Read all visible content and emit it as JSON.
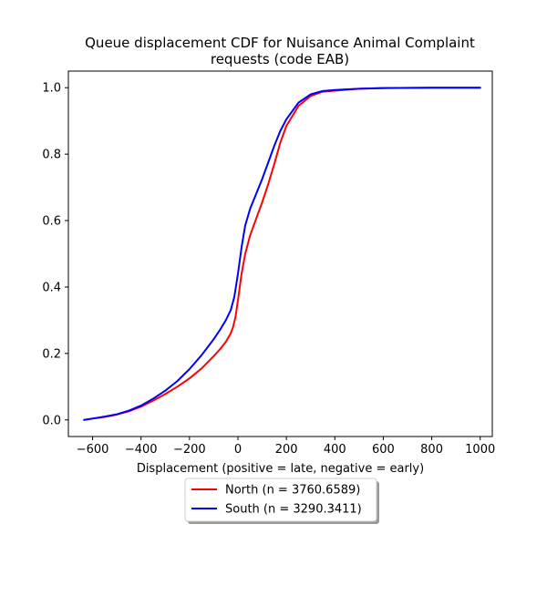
{
  "chart_data": {
    "type": "line",
    "title": "Queue displacement CDF for Nuisance Animal Complaint requests (code EAB)",
    "title_lines": [
      "Queue displacement CDF for Nuisance Animal Complaint",
      "requests (code EAB)"
    ],
    "xlabel": "Displacement (positive = late, negative = early)",
    "ylabel": "",
    "xlim": [
      -700,
      1050
    ],
    "ylim": [
      -0.05,
      1.05
    ],
    "xticks": [
      -600,
      -400,
      -200,
      0,
      200,
      400,
      600,
      800,
      1000
    ],
    "xtick_labels": [
      "−600",
      "−400",
      "−200",
      "0",
      "200",
      "400",
      "600",
      "800",
      "1000"
    ],
    "yticks": [
      0.0,
      0.2,
      0.4,
      0.6,
      0.8,
      1.0
    ],
    "ytick_labels": [
      "0.0",
      "0.2",
      "0.4",
      "0.6",
      "0.8",
      "1.0"
    ],
    "grid": false,
    "legend_position": "below",
    "series": [
      {
        "name": "North (n = 3760.6589)",
        "color": "#ff0000",
        "points": [
          [
            -635,
            0.0
          ],
          [
            -600,
            0.004
          ],
          [
            -550,
            0.009
          ],
          [
            -500,
            0.016
          ],
          [
            -450,
            0.026
          ],
          [
            -400,
            0.04
          ],
          [
            -350,
            0.058
          ],
          [
            -300,
            0.078
          ],
          [
            -250,
            0.1
          ],
          [
            -200,
            0.125
          ],
          [
            -150,
            0.155
          ],
          [
            -100,
            0.192
          ],
          [
            -75,
            0.212
          ],
          [
            -50,
            0.235
          ],
          [
            -30,
            0.26
          ],
          [
            -20,
            0.28
          ],
          [
            -10,
            0.31
          ],
          [
            0,
            0.36
          ],
          [
            15,
            0.44
          ],
          [
            30,
            0.5
          ],
          [
            50,
            0.555
          ],
          [
            75,
            0.605
          ],
          [
            100,
            0.655
          ],
          [
            125,
            0.71
          ],
          [
            150,
            0.77
          ],
          [
            175,
            0.835
          ],
          [
            200,
            0.885
          ],
          [
            250,
            0.945
          ],
          [
            300,
            0.975
          ],
          [
            350,
            0.988
          ],
          [
            400,
            0.991
          ],
          [
            450,
            0.994
          ],
          [
            500,
            0.997
          ],
          [
            600,
            0.999
          ],
          [
            800,
            1.0
          ],
          [
            1000,
            1.0
          ]
        ]
      },
      {
        "name": "South (n = 3290.3411)",
        "color": "#0000ff",
        "points": [
          [
            -635,
            0.0
          ],
          [
            -600,
            0.004
          ],
          [
            -550,
            0.01
          ],
          [
            -500,
            0.017
          ],
          [
            -450,
            0.028
          ],
          [
            -400,
            0.043
          ],
          [
            -350,
            0.064
          ],
          [
            -300,
            0.088
          ],
          [
            -250,
            0.117
          ],
          [
            -200,
            0.153
          ],
          [
            -150,
            0.195
          ],
          [
            -100,
            0.243
          ],
          [
            -75,
            0.27
          ],
          [
            -50,
            0.3
          ],
          [
            -30,
            0.33
          ],
          [
            -15,
            0.37
          ],
          [
            0,
            0.44
          ],
          [
            15,
            0.52
          ],
          [
            30,
            0.585
          ],
          [
            50,
            0.635
          ],
          [
            75,
            0.68
          ],
          [
            100,
            0.725
          ],
          [
            125,
            0.775
          ],
          [
            150,
            0.825
          ],
          [
            175,
            0.87
          ],
          [
            200,
            0.905
          ],
          [
            250,
            0.955
          ],
          [
            300,
            0.98
          ],
          [
            350,
            0.99
          ],
          [
            400,
            0.993
          ],
          [
            450,
            0.995
          ],
          [
            500,
            0.997
          ],
          [
            600,
            0.999
          ],
          [
            800,
            1.0
          ],
          [
            1000,
            1.0
          ]
        ]
      }
    ]
  }
}
